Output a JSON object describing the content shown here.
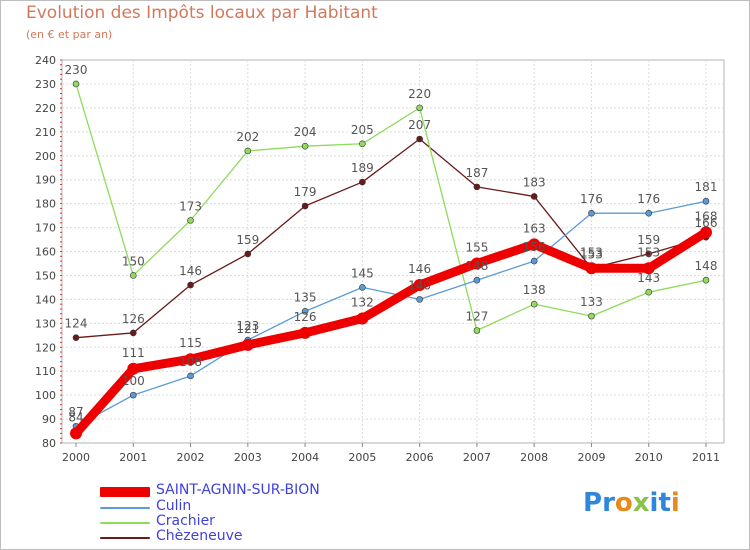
{
  "title": "Evolution des Impôts locaux par Habitant",
  "subtitle": "(en € et par an)",
  "logo_text": "Proxiti",
  "chart_data": {
    "type": "line",
    "title": "Evolution des Impôts locaux par Habitant",
    "subtitle": "(en € et par an)",
    "xlabel": "",
    "ylabel": "",
    "ylim": [
      80,
      240
    ],
    "ytick_step": 10,
    "categories": [
      "2000",
      "2001",
      "2002",
      "2003",
      "2004",
      "2005",
      "2006",
      "2007",
      "2008",
      "2009",
      "2010",
      "2011"
    ],
    "y_ticks": [
      "80",
      "90",
      "100",
      "110",
      "120",
      "130",
      "140",
      "150",
      "160",
      "170",
      "180",
      "190",
      "200",
      "210",
      "220",
      "230",
      "240"
    ],
    "series": [
      {
        "name": "SAINT-AGNIN-SUR-BION",
        "color": "#ee0000",
        "values": [
          84,
          111,
          115,
          121,
          126,
          132,
          146,
          155,
          163,
          153,
          153,
          168
        ]
      },
      {
        "name": "Culin",
        "color": "#5b9bd5",
        "values": [
          87,
          100,
          108,
          123,
          135,
          145,
          140,
          148,
          156,
          176,
          176,
          181
        ]
      },
      {
        "name": "Crachier",
        "color": "#8fdb5a",
        "values": [
          230,
          150,
          173,
          202,
          204,
          205,
          220,
          127,
          138,
          133,
          143,
          148
        ]
      },
      {
        "name": "Chèzeneuve",
        "color": "#6b1a1a",
        "values": [
          124,
          126,
          146,
          159,
          179,
          189,
          207,
          187,
          183,
          153,
          159,
          166
        ]
      }
    ],
    "legend_position": "bottom-left",
    "grid": true
  }
}
